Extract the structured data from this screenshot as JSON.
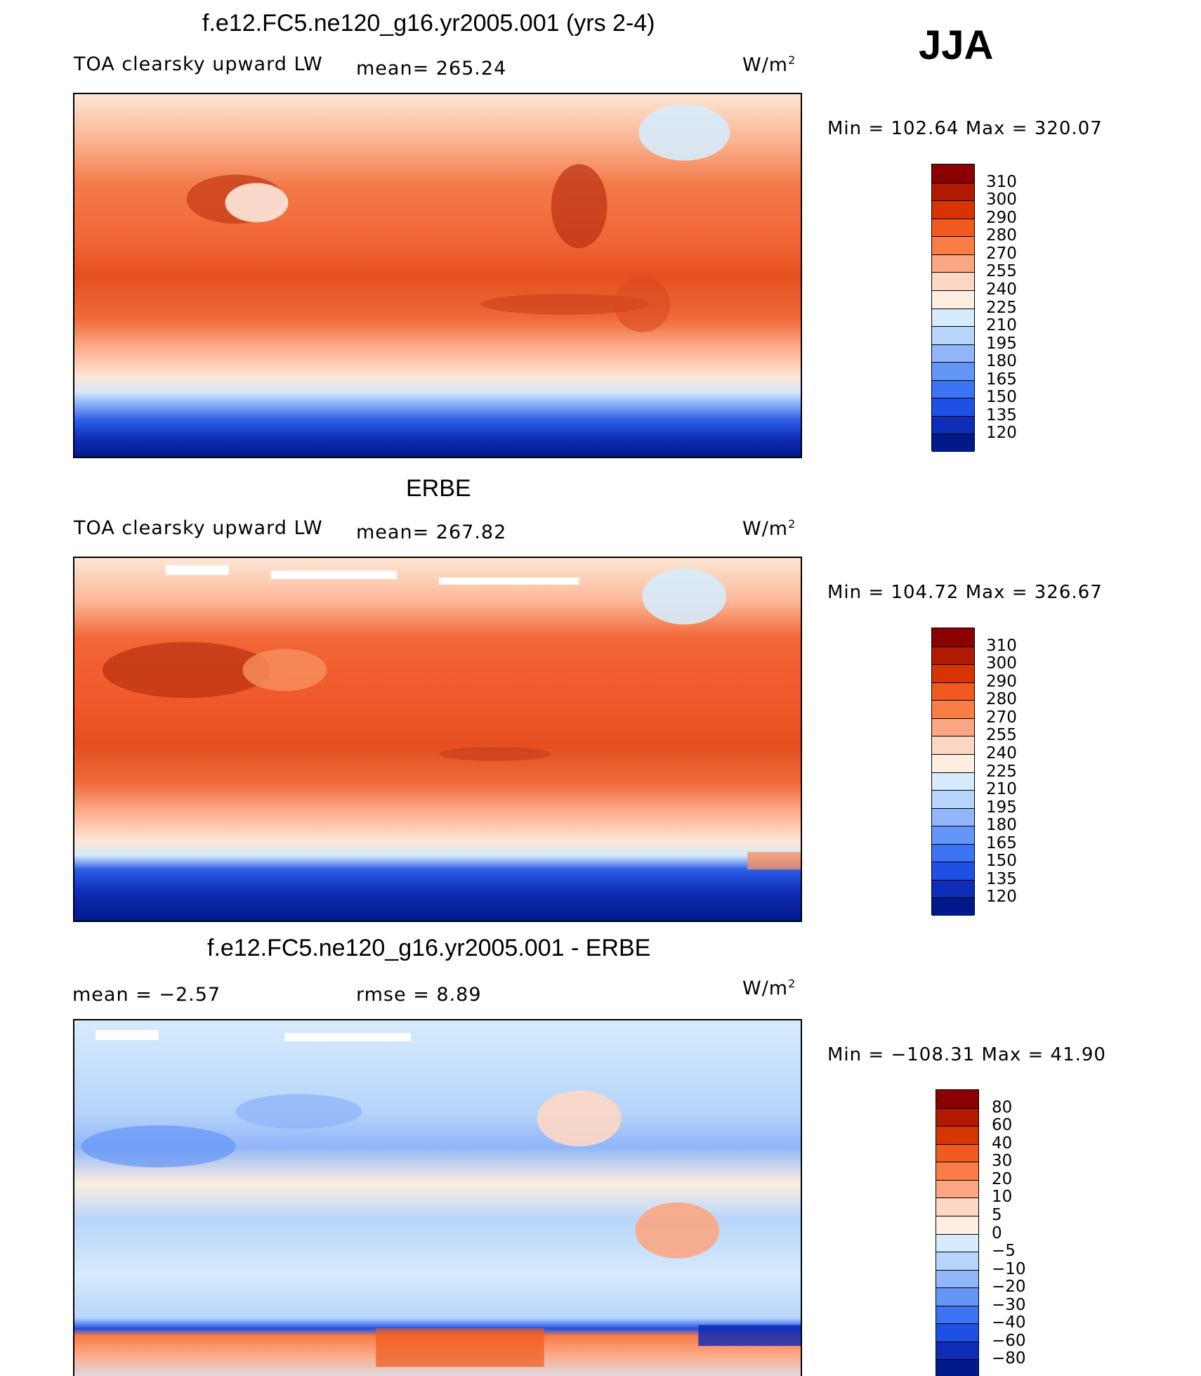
{
  "season": "JJA",
  "units_main": "W/m",
  "units_sup": "2",
  "panels": [
    {
      "title": "f.e12.FC5.ne120_g16.yr2005.001 (yrs 2-4)",
      "left_label": "TOA clearsky upward LW",
      "stat1": "mean=  265.24",
      "stat2": "",
      "minmax": "Min  =  102.64  Max  =  320.07",
      "colorbar": [
        "#8b0000",
        "#b21a00",
        "#d63400",
        "#f05a1e",
        "#fa7d46",
        "#fca683",
        "#fdd7c4",
        "#fdeee0",
        "#d6ebfb",
        "#b7d5fb",
        "#91b6f9",
        "#6496f7",
        "#3d74f5",
        "#1e50e6",
        "#0f2db7",
        "#001a8a"
      ],
      "ticks": [
        "310",
        "300",
        "290",
        "280",
        "270",
        "255",
        "240",
        "225",
        "210",
        "195",
        "180",
        "165",
        "150",
        "135",
        "120"
      ]
    },
    {
      "title": "ERBE",
      "left_label": "TOA clearsky upward LW",
      "stat1": "mean=  267.82",
      "stat2": "",
      "minmax": "Min  =  104.72  Max  =  326.67",
      "colorbar": [
        "#8b0000",
        "#b21a00",
        "#d63400",
        "#f05a1e",
        "#fa7d46",
        "#fca683",
        "#fdd7c4",
        "#fdeee0",
        "#d6ebfb",
        "#b7d5fb",
        "#91b6f9",
        "#6496f7",
        "#3d74f5",
        "#1e50e6",
        "#0f2db7",
        "#001a8a"
      ],
      "ticks": [
        "310",
        "300",
        "290",
        "280",
        "270",
        "255",
        "240",
        "225",
        "210",
        "195",
        "180",
        "165",
        "150",
        "135",
        "120"
      ]
    },
    {
      "title": "f.e12.FC5.ne120_g16.yr2005.001 - ERBE",
      "left_label": "mean  =     −2.57",
      "stat1": "rmse  =     8.89",
      "stat2": "",
      "minmax": "Min  =  −108.31  Max  =    41.90",
      "colorbar": [
        "#8b0000",
        "#b21a00",
        "#d63400",
        "#f05a1e",
        "#fa7d46",
        "#fca683",
        "#fdd7c4",
        "#fdeee0",
        "#d6ebfb",
        "#b7d5fb",
        "#91b6f9",
        "#6496f7",
        "#3d74f5",
        "#1e50e6",
        "#0f2db7",
        "#001a8a"
      ],
      "ticks": [
        "80",
        "60",
        "40",
        "30",
        "20",
        "10",
        "5",
        "0",
        "−5",
        "−10",
        "−20",
        "−30",
        "−40",
        "−60",
        "−80"
      ]
    }
  ]
}
